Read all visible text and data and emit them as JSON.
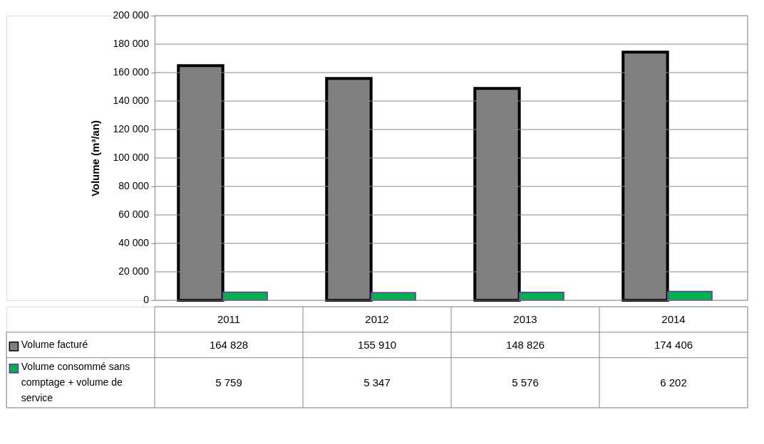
{
  "chart_data": {
    "type": "bar",
    "ylabel": "Volume (m³/an)",
    "categories": [
      "2011",
      "2012",
      "2013",
      "2014"
    ],
    "ylim": [
      0,
      200000
    ],
    "yticks": [
      0,
      {
        "value": 20000,
        "label": "20 000"
      },
      {
        "value": 40000,
        "label": "40 000"
      },
      {
        "value": 60000,
        "label": "60 000"
      },
      {
        "value": 80000,
        "label": "80 000"
      },
      {
        "value": 100000,
        "label": "100 000"
      },
      {
        "value": 120000,
        "label": "120 000"
      },
      {
        "value": 140000,
        "label": "140 000"
      },
      {
        "value": 160000,
        "label": "160 000"
      },
      {
        "value": 180000,
        "label": "180 000"
      },
      {
        "value": 200000,
        "label": "200 000"
      }
    ],
    "grid": "y",
    "legend": "bottom",
    "series": [
      {
        "name": "Volume facturé",
        "color": "#808080",
        "values": [
          164828,
          155910,
          148826,
          174406
        ],
        "value_labels": [
          "164 828",
          "155 910",
          "148 826",
          "174 406"
        ]
      },
      {
        "name": "Volume consommé sans comptage + volume de service",
        "color": "#00b050",
        "values": [
          5759,
          5347,
          5576,
          6202
        ],
        "value_labels": [
          "5 759",
          "5 347",
          "5 576",
          "6 202"
        ]
      }
    ]
  }
}
